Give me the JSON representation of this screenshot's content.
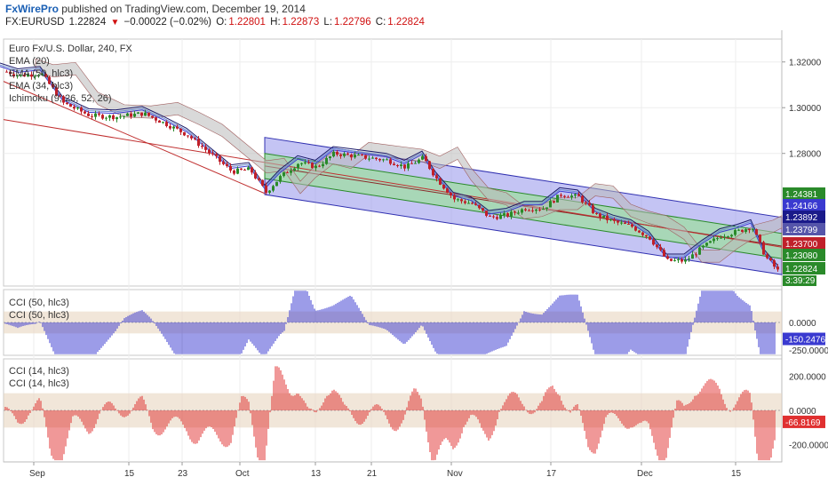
{
  "header": {
    "author": "FxWirePro",
    "published": "published on TradingView.com, December 19, 2014",
    "symbol": "FX:EURUSD",
    "last": "1.22824",
    "change": "−0.00022 (−0.02%)",
    "open": "1.22801",
    "high": "1.22873",
    "low": "1.22796",
    "close": "1.22824",
    "o_label": "O:",
    "h_label": "H:",
    "l_label": "L:",
    "c_label": "C:"
  },
  "legend": {
    "main_title": "Euro Fx/U.S. Dollar, 240, FX",
    "studies": [
      "EMA (20)",
      "EMA (50, hlc3)",
      "EMA (34, hlc3)",
      "Ichimoku (9, 26, 52, 26)"
    ],
    "cci1": [
      "CCI (50, hlc3)",
      "CCI (50, hlc3)"
    ],
    "cci2": [
      "CCI (14, hlc3)",
      "CCI (14, hlc3)"
    ]
  },
  "colors": {
    "up": "#2a8a2a",
    "down": "#c0202a",
    "channel_outer": "#7c7ce6",
    "channel_inner": "#9ce09c",
    "cloud": "#b9b9b9",
    "cci50": "#3a3ad0",
    "cci14": "#e03030",
    "band": "#e8d6c0"
  },
  "chart_data": [
    {
      "type": "candlestick",
      "title": "Euro Fx/U.S. Dollar, 240, FX",
      "ylim": [
        1.222,
        1.33
      ],
      "y_ticks": [
        "1.32000",
        "1.30000",
        "1.28000"
      ],
      "x_ticks": [
        "Sep",
        "15",
        "23",
        "Oct",
        "13",
        "21",
        "Nov",
        "17",
        "Dec",
        "15"
      ],
      "price_series": [
        [
          0,
          1.3165
        ],
        [
          20,
          1.314
        ],
        [
          45,
          1.315
        ],
        [
          70,
          1.302
        ],
        [
          100,
          1.2965
        ],
        [
          130,
          1.296
        ],
        [
          160,
          1.2975
        ],
        [
          185,
          1.293
        ],
        [
          210,
          1.288
        ],
        [
          235,
          1.28
        ],
        [
          260,
          1.272
        ],
        [
          280,
          1.273
        ],
        [
          298,
          1.263
        ],
        [
          315,
          1.27
        ],
        [
          335,
          1.276
        ],
        [
          355,
          1.274
        ],
        [
          375,
          1.28
        ],
        [
          395,
          1.279
        ],
        [
          415,
          1.278
        ],
        [
          435,
          1.277
        ],
        [
          455,
          1.274
        ],
        [
          475,
          1.278
        ],
        [
          490,
          1.269
        ],
        [
          510,
          1.26
        ],
        [
          530,
          1.258
        ],
        [
          550,
          1.252
        ],
        [
          570,
          1.253
        ],
        [
          590,
          1.256
        ],
        [
          610,
          1.256
        ],
        [
          630,
          1.262
        ],
        [
          650,
          1.261
        ],
        [
          670,
          1.253
        ],
        [
          690,
          1.25
        ],
        [
          710,
          1.248
        ],
        [
          730,
          1.243
        ],
        [
          750,
          1.233
        ],
        [
          770,
          1.233
        ],
        [
          790,
          1.239
        ],
        [
          810,
          1.244
        ],
        [
          830,
          1.246
        ],
        [
          845,
          1.248
        ],
        [
          860,
          1.235
        ],
        [
          875,
          1.2282
        ]
      ],
      "price_labels": [
        {
          "value": 1.24381,
          "text": "1.24381",
          "color": "#2a8a2a"
        },
        {
          "value": 1.24166,
          "text": "1.24166",
          "color": "#3a3ad0"
        },
        {
          "value": 1.23892,
          "text": "1.23892",
          "color": "#1a1a8a"
        },
        {
          "value": 1.23799,
          "text": "1.23799",
          "color": "#5555aa"
        },
        {
          "value": 1.237,
          "text": "1.23700",
          "color": "#c0202a"
        },
        {
          "value": 1.2308,
          "text": "1.23080",
          "color": "#2a8a2a"
        },
        {
          "value": 1.22824,
          "text": "1.22824",
          "color": "#2a8a2a"
        }
      ],
      "countdown": "3:39:29"
    },
    {
      "type": "bar",
      "name": "CCI (50, hlc3)",
      "ylim": [
        -300,
        300
      ],
      "y_ticks": [
        "0.0000",
        "-250.0000"
      ],
      "current": "-150.2476"
    },
    {
      "type": "bar",
      "name": "CCI (14, hlc3)",
      "ylim": [
        -300,
        300
      ],
      "y_ticks": [
        "200.0000",
        "0.0000",
        "-200.0000"
      ],
      "current": "-66.8169"
    }
  ]
}
